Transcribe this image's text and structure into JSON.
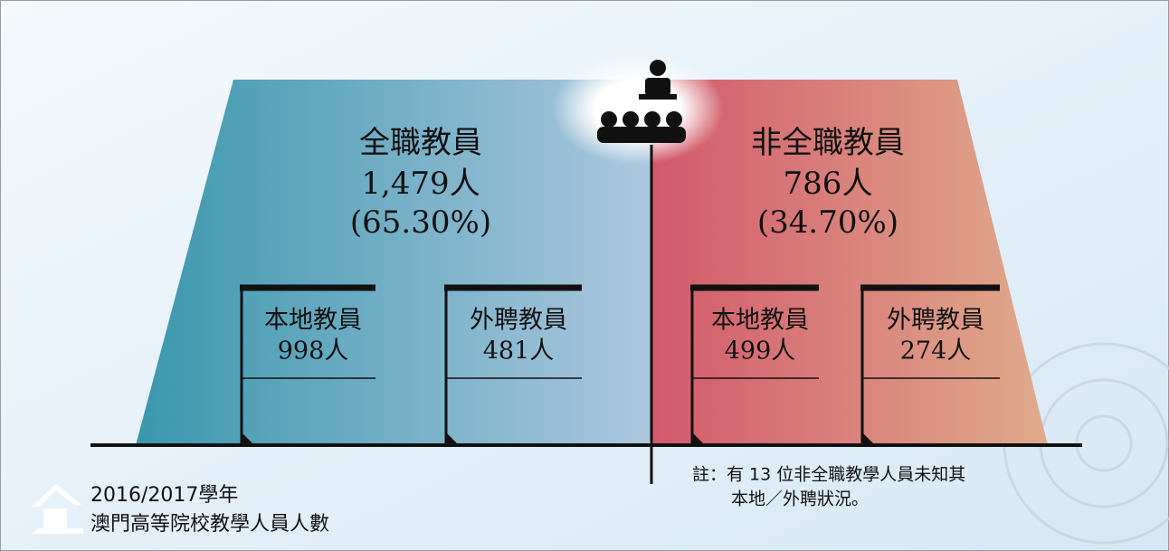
{
  "full_time": {
    "title": "全職教員",
    "count": "1,479人",
    "percent": "(65.30%)",
    "local": {
      "label": "本地教員",
      "count": "998人"
    },
    "foreign": {
      "label": "外聘教員",
      "count": "481人"
    }
  },
  "part_time": {
    "title": "非全職教員",
    "count": "786人",
    "percent": "(34.70%)",
    "local": {
      "label": "本地教員",
      "count": "499人"
    },
    "foreign": {
      "label": "外聘教員",
      "count": "274人"
    }
  },
  "note": {
    "lines": [
      "註：有 13 位非全職教學人員未知其",
      "本地／外聘狀況。"
    ]
  },
  "caption": {
    "year": "2016/2017學年",
    "title": "澳門高等院校教學人員人數"
  }
}
